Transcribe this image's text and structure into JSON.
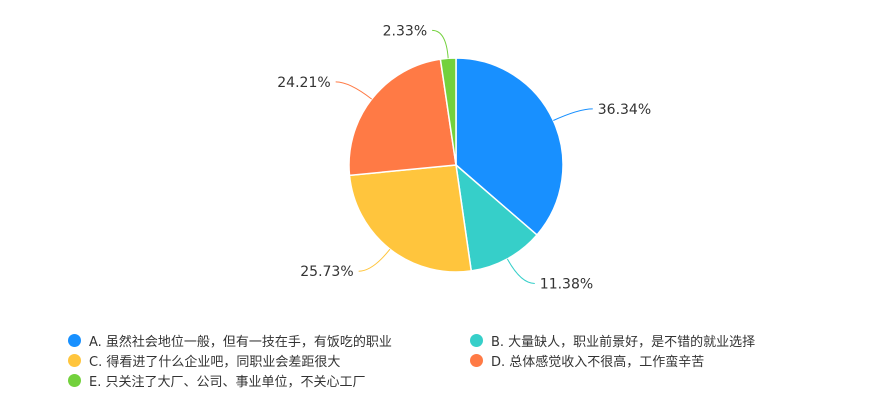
{
  "chart_data": {
    "type": "pie",
    "start": "top",
    "direction": "clockwise",
    "series": [
      {
        "name": "A. 虽然社会地位一般，但有一技在手，有饭吃的职业",
        "value": 36.34,
        "label": "36.34%",
        "color": "#1890ff"
      },
      {
        "name": "B. 大量缺人，职业前景好，是不错的就业选择",
        "value": 11.38,
        "label": "11.38%",
        "color": "#36cfc9"
      },
      {
        "name": "C. 得看进了什么企业吧，同职业会差距很大",
        "value": 25.73,
        "label": "25.73%",
        "color": "#ffc53d"
      },
      {
        "name": "D. 总体感觉收入不很高，工作蛮辛苦",
        "value": 24.21,
        "label": "24.21%",
        "color": "#ff7a45"
      },
      {
        "name": "E. 只关注了大厂、公司、事业单位，不关心工厂",
        "value": 2.33,
        "label": "2.33%",
        "color": "#73d13d"
      }
    ],
    "legend": "bottom"
  }
}
